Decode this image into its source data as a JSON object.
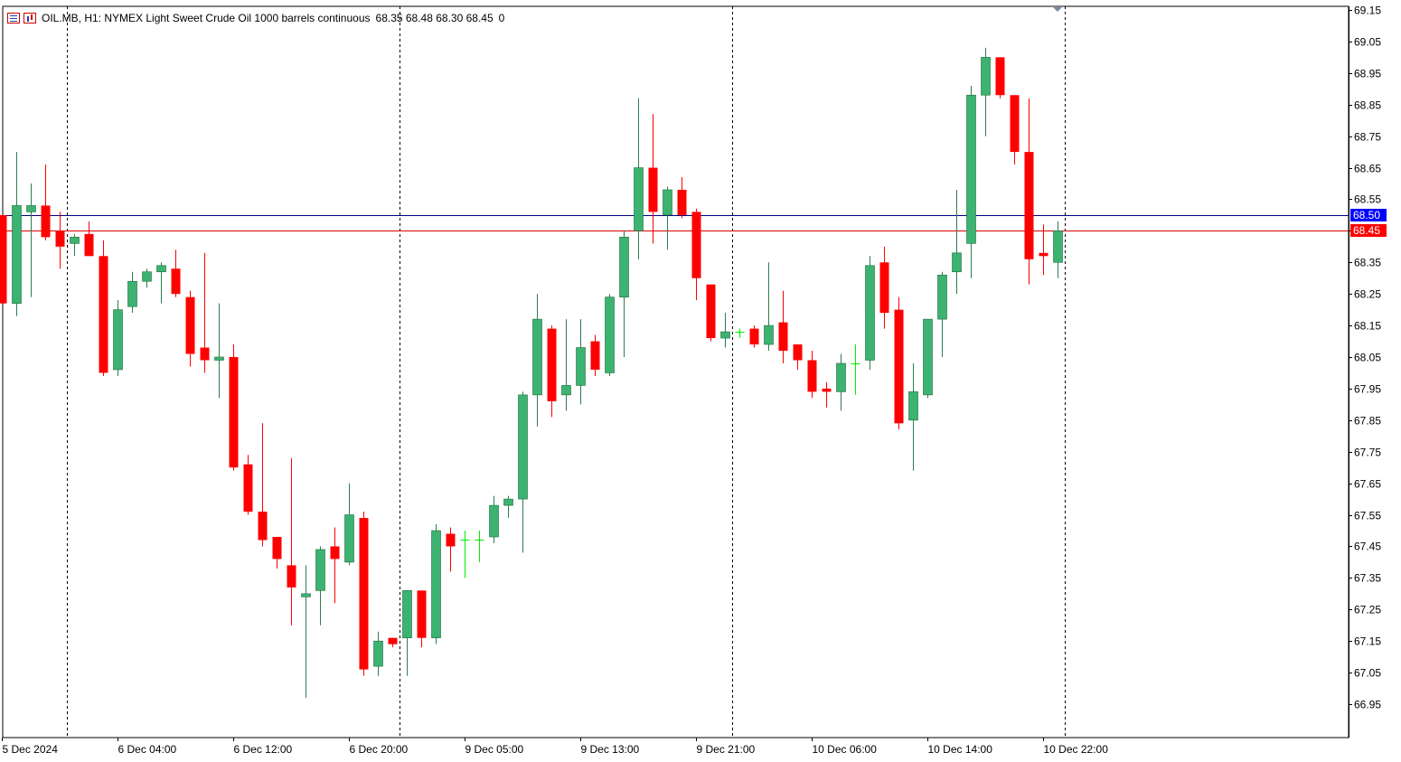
{
  "header": {
    "symbol_title": "OIL.MB, H1:  NYMEX Light Sweet Crude Oil 1000 barrels continuous",
    "ohlc": "68.35 68.48 68.30 68.45",
    "extra": "0",
    "icons": [
      "chart-list-icon",
      "chart-bars-icon"
    ]
  },
  "colors": {
    "bull": "#3cb371",
    "bear": "#ff0000",
    "doji": "#00ee00",
    "ask_line": "#000080",
    "bid_line": "#dd0000",
    "ask_badge": "#0000ff",
    "bid_badge": "#ff0000"
  },
  "chart_data": {
    "type": "candlestick",
    "ylim": [
      66.88,
      69.17
    ],
    "y_ticks": [
      "69.15",
      "69.05",
      "68.95",
      "68.85",
      "68.75",
      "68.65",
      "68.55",
      "68.45",
      "68.35",
      "68.25",
      "68.15",
      "68.05",
      "67.95",
      "67.85",
      "67.75",
      "67.65",
      "67.55",
      "67.45",
      "67.35",
      "67.25",
      "67.15",
      "67.05",
      "66.95"
    ],
    "x_labels": [
      "5 Dec 2024",
      "6 Dec 04:00",
      "6 Dec 12:00",
      "6 Dec 20:00",
      "9 Dec 05:00",
      "9 Dec 13:00",
      "9 Dec 21:00",
      "10 Dec 06:00",
      "10 Dec 14:00",
      "10 Dec 22:00"
    ],
    "x_label_bar_index": [
      0,
      8,
      16,
      24,
      32,
      40,
      48,
      56,
      64,
      72
    ],
    "period_separators_bar_index": [
      4.5,
      27.5,
      50.5,
      73.5
    ],
    "price_lines": [
      {
        "kind": "ask",
        "value": 68.5,
        "label": "68.50"
      },
      {
        "kind": "bid",
        "value": 68.45,
        "label": "68.45"
      }
    ],
    "candles": [
      {
        "o": 68.5,
        "h": 68.5,
        "l": 68.22,
        "c": 68.22
      },
      {
        "o": 68.22,
        "h": 68.7,
        "l": 68.18,
        "c": 68.53
      },
      {
        "o": 68.51,
        "h": 68.6,
        "l": 68.24,
        "c": 68.53
      },
      {
        "o": 68.53,
        "h": 68.66,
        "l": 68.42,
        "c": 68.43
      },
      {
        "o": 68.45,
        "h": 68.51,
        "l": 68.33,
        "c": 68.4
      },
      {
        "o": 68.41,
        "h": 68.44,
        "l": 68.37,
        "c": 68.43
      },
      {
        "o": 68.44,
        "h": 68.48,
        "l": 68.37,
        "c": 68.37
      },
      {
        "o": 68.37,
        "h": 68.42,
        "l": 67.99,
        "c": 68.0
      },
      {
        "o": 68.01,
        "h": 68.23,
        "l": 67.99,
        "c": 68.2
      },
      {
        "o": 68.21,
        "h": 68.32,
        "l": 68.19,
        "c": 68.29
      },
      {
        "o": 68.29,
        "h": 68.33,
        "l": 68.27,
        "c": 68.32
      },
      {
        "o": 68.32,
        "h": 68.35,
        "l": 68.22,
        "c": 68.34
      },
      {
        "o": 68.33,
        "h": 68.39,
        "l": 68.24,
        "c": 68.25
      },
      {
        "o": 68.24,
        "h": 68.26,
        "l": 68.02,
        "c": 68.06
      },
      {
        "o": 68.08,
        "h": 68.38,
        "l": 68.0,
        "c": 68.04
      },
      {
        "o": 68.04,
        "h": 68.22,
        "l": 67.92,
        "c": 68.05
      },
      {
        "o": 68.05,
        "h": 68.09,
        "l": 67.69,
        "c": 67.7
      },
      {
        "o": 67.71,
        "h": 67.74,
        "l": 67.55,
        "c": 67.56
      },
      {
        "o": 67.56,
        "h": 67.84,
        "l": 67.45,
        "c": 67.47
      },
      {
        "o": 67.48,
        "h": 67.48,
        "l": 67.38,
        "c": 67.41
      },
      {
        "o": 67.39,
        "h": 67.73,
        "l": 67.2,
        "c": 67.32
      },
      {
        "o": 67.29,
        "h": 67.39,
        "l": 66.97,
        "c": 67.3
      },
      {
        "o": 67.31,
        "h": 67.45,
        "l": 67.2,
        "c": 67.44
      },
      {
        "o": 67.45,
        "h": 67.51,
        "l": 67.27,
        "c": 67.41
      },
      {
        "o": 67.4,
        "h": 67.65,
        "l": 67.39,
        "c": 67.55
      },
      {
        "o": 67.54,
        "h": 67.56,
        "l": 67.04,
        "c": 67.06
      },
      {
        "o": 67.07,
        "h": 67.18,
        "l": 67.04,
        "c": 67.15
      },
      {
        "o": 67.16,
        "h": 67.16,
        "l": 67.13,
        "c": 67.14
      },
      {
        "o": 67.16,
        "h": 67.31,
        "l": 67.04,
        "c": 67.31
      },
      {
        "o": 67.31,
        "h": 67.31,
        "l": 67.13,
        "c": 67.16
      },
      {
        "o": 67.16,
        "h": 67.52,
        "l": 67.14,
        "c": 67.5
      },
      {
        "o": 67.49,
        "h": 67.51,
        "l": 67.37,
        "c": 67.45
      },
      {
        "o": 67.47,
        "h": 67.5,
        "l": 67.35,
        "c": 67.47
      },
      {
        "o": 67.47,
        "h": 67.5,
        "l": 67.4,
        "c": 67.47
      },
      {
        "o": 67.48,
        "h": 67.61,
        "l": 67.46,
        "c": 67.58
      },
      {
        "o": 67.58,
        "h": 67.61,
        "l": 67.54,
        "c": 67.6
      },
      {
        "o": 67.6,
        "h": 67.94,
        "l": 67.43,
        "c": 67.93
      },
      {
        "o": 67.93,
        "h": 68.25,
        "l": 67.83,
        "c": 68.17
      },
      {
        "o": 68.14,
        "h": 68.15,
        "l": 67.86,
        "c": 67.91
      },
      {
        "o": 67.93,
        "h": 68.17,
        "l": 67.88,
        "c": 67.96
      },
      {
        "o": 67.96,
        "h": 68.17,
        "l": 67.9,
        "c": 68.08
      },
      {
        "o": 68.1,
        "h": 68.12,
        "l": 67.99,
        "c": 68.01
      },
      {
        "o": 68.0,
        "h": 68.25,
        "l": 67.99,
        "c": 68.24
      },
      {
        "o": 68.24,
        "h": 68.45,
        "l": 68.05,
        "c": 68.43
      },
      {
        "o": 68.45,
        "h": 68.87,
        "l": 68.36,
        "c": 68.65
      },
      {
        "o": 68.65,
        "h": 68.82,
        "l": 68.41,
        "c": 68.51
      },
      {
        "o": 68.5,
        "h": 68.59,
        "l": 68.39,
        "c": 68.58
      },
      {
        "o": 68.58,
        "h": 68.62,
        "l": 68.49,
        "c": 68.5
      },
      {
        "o": 68.51,
        "h": 68.52,
        "l": 68.23,
        "c": 68.3
      },
      {
        "o": 68.28,
        "h": 68.28,
        "l": 68.1,
        "c": 68.11
      },
      {
        "o": 68.11,
        "h": 68.19,
        "l": 68.08,
        "c": 68.13
      },
      {
        "o": 68.13,
        "h": 68.14,
        "l": 68.11,
        "c": 68.13
      },
      {
        "o": 68.14,
        "h": 68.15,
        "l": 68.08,
        "c": 68.09
      },
      {
        "o": 68.09,
        "h": 68.35,
        "l": 68.07,
        "c": 68.15
      },
      {
        "o": 68.16,
        "h": 68.26,
        "l": 68.03,
        "c": 68.07
      },
      {
        "o": 68.09,
        "h": 68.09,
        "l": 68.01,
        "c": 68.04
      },
      {
        "o": 68.04,
        "h": 68.07,
        "l": 67.92,
        "c": 67.94
      },
      {
        "o": 67.95,
        "h": 67.97,
        "l": 67.89,
        "c": 67.94
      },
      {
        "o": 67.94,
        "h": 68.06,
        "l": 67.88,
        "c": 68.03
      },
      {
        "o": 68.03,
        "h": 68.09,
        "l": 67.93,
        "c": 68.03
      },
      {
        "o": 68.04,
        "h": 68.37,
        "l": 68.01,
        "c": 68.34
      },
      {
        "o": 68.35,
        "h": 68.4,
        "l": 68.14,
        "c": 68.19
      },
      {
        "o": 68.2,
        "h": 68.24,
        "l": 67.82,
        "c": 67.84
      },
      {
        "o": 67.85,
        "h": 68.03,
        "l": 67.69,
        "c": 67.94
      },
      {
        "o": 67.93,
        "h": 68.17,
        "l": 67.92,
        "c": 68.17
      },
      {
        "o": 68.17,
        "h": 68.32,
        "l": 68.05,
        "c": 68.31
      },
      {
        "o": 68.32,
        "h": 68.58,
        "l": 68.25,
        "c": 68.38
      },
      {
        "o": 68.41,
        "h": 68.91,
        "l": 68.3,
        "c": 68.88
      },
      {
        "o": 68.88,
        "h": 69.03,
        "l": 68.75,
        "c": 69.0
      },
      {
        "o": 69.0,
        "h": 69.0,
        "l": 68.87,
        "c": 68.88
      },
      {
        "o": 68.88,
        "h": 68.88,
        "l": 68.66,
        "c": 68.7
      },
      {
        "o": 68.7,
        "h": 68.87,
        "l": 68.28,
        "c": 68.36
      },
      {
        "o": 68.38,
        "h": 68.47,
        "l": 68.31,
        "c": 68.37
      },
      {
        "o": 68.35,
        "h": 68.48,
        "l": 68.3,
        "c": 68.45
      }
    ]
  }
}
